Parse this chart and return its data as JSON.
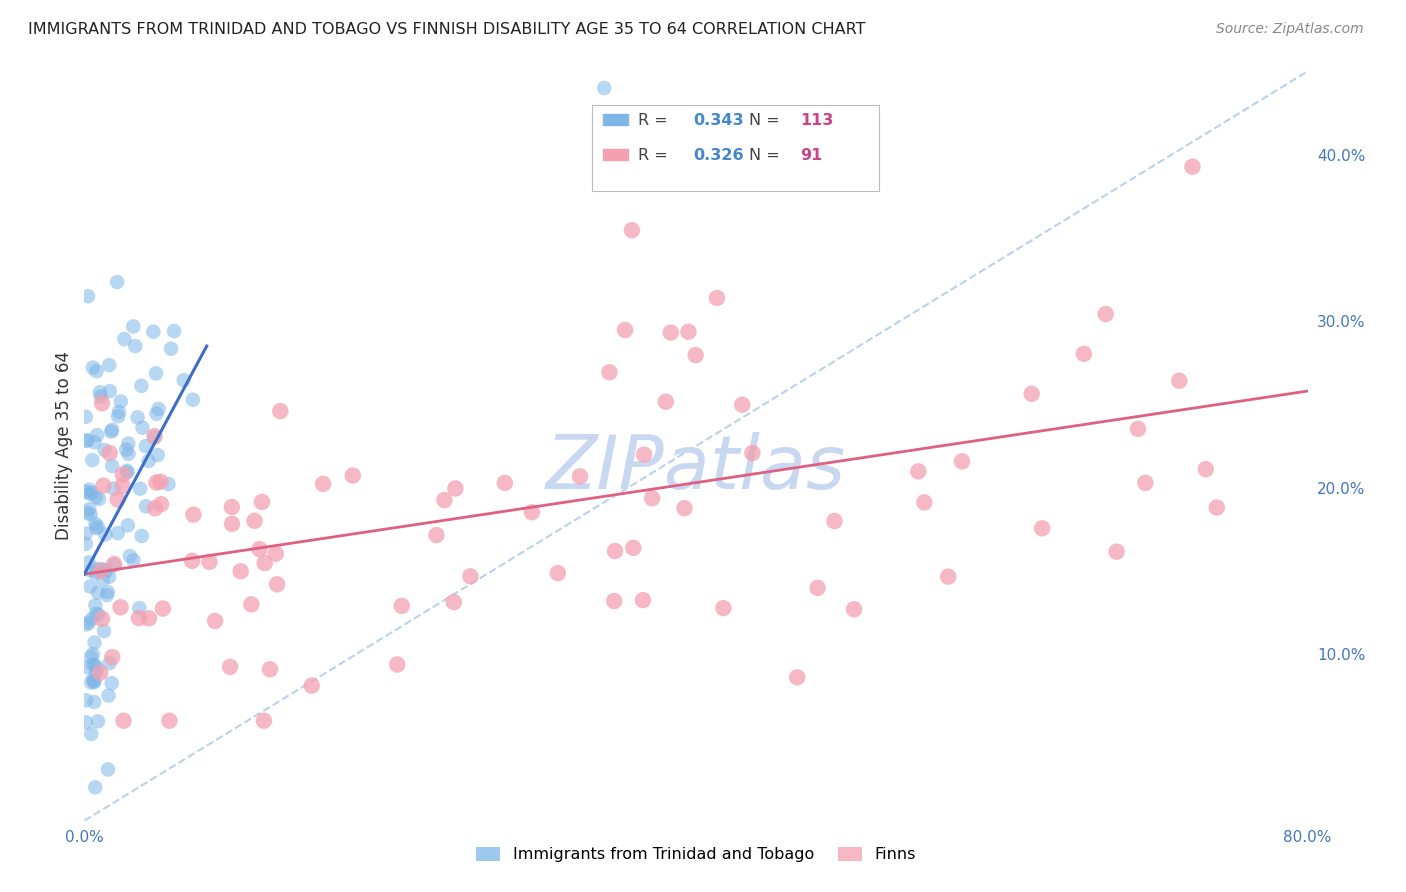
{
  "title": "IMMIGRANTS FROM TRINIDAD AND TOBAGO VS FINNISH DISABILITY AGE 35 TO 64 CORRELATION CHART",
  "source": "Source: ZipAtlas.com",
  "ylabel": "Disability Age 35 to 64",
  "xlim": [
    0.0,
    0.8
  ],
  "ylim": [
    0.0,
    0.45
  ],
  "yticks_right": [
    0.1,
    0.2,
    0.3,
    0.4
  ],
  "ytick_labels_right": [
    "10.0%",
    "20.0%",
    "30.0%",
    "40.0%"
  ],
  "blue_R": 0.343,
  "blue_N": 113,
  "pink_R": 0.326,
  "pink_N": 91,
  "blue_color": "#7EB6E8",
  "pink_color": "#F4A0B0",
  "blue_line_color": "#3A6EC8",
  "pink_line_color": "#E06080",
  "dashed_line_color": "#A8C8E8",
  "watermark_color": "#C8D8F0",
  "legend_R_color": "#4488CC",
  "legend_N_color": "#CC4488",
  "background_color": "#FFFFFF",
  "blue_line_x": [
    0.0,
    0.08
  ],
  "blue_line_y": [
    0.148,
    0.285
  ],
  "pink_line_x": [
    0.0,
    0.8
  ],
  "pink_line_y": [
    0.148,
    0.258
  ],
  "dashed_line_x": [
    0.0,
    0.8
  ],
  "dashed_line_y": [
    0.0,
    0.45
  ]
}
